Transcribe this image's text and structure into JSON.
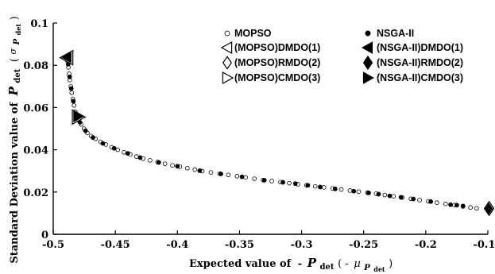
{
  "chart_data": {
    "type": "scatter",
    "xlim": [
      -0.5,
      -0.15
    ],
    "ylim": [
      0,
      0.1
    ],
    "xticks": [
      "-0.5",
      "-0.45",
      "-0.4",
      "-0.35",
      "-0.3",
      "-0.25",
      "-0.2",
      "-0.15"
    ],
    "yticks": [
      "0",
      "0.02",
      "0.04",
      "0.06",
      "0.08",
      "0.1"
    ],
    "xlabel": {
      "main": "Expected value of",
      "sign": "-",
      "var": "P",
      "sub": "det",
      "paren_open": "( -",
      "mu": "μ",
      "mu_sub": "P",
      "mu_sub2": "det",
      "paren_close": ")"
    },
    "ylabel": {
      "main": "Standard Deviation  value of",
      "var": "P",
      "sub": "det",
      "paren_open": "(",
      "sigma": "σ",
      "sigma_sub": "P",
      "sigma_sub2": "det",
      "paren_close": ")"
    },
    "grid": false,
    "legend_position": "top-right",
    "series": [
      {
        "name": "MOPSO",
        "marker": "open-circle",
        "points": [
          [
            -0.4885,
            0.082
          ],
          [
            -0.4878,
            0.079
          ],
          [
            -0.4872,
            0.076
          ],
          [
            -0.4866,
            0.073
          ],
          [
            -0.4858,
            0.07
          ],
          [
            -0.4851,
            0.067
          ],
          [
            -0.4842,
            0.064
          ],
          [
            -0.4832,
            0.061
          ],
          [
            -0.4822,
            0.058
          ],
          [
            -0.481,
            0.056
          ],
          [
            -0.4795,
            0.054
          ],
          [
            -0.4775,
            0.052
          ],
          [
            -0.4752,
            0.05
          ],
          [
            -0.4725,
            0.048
          ],
          [
            -0.4695,
            0.0465
          ],
          [
            -0.466,
            0.0452
          ],
          [
            -0.462,
            0.0438
          ],
          [
            -0.4575,
            0.0425
          ],
          [
            -0.453,
            0.0412
          ],
          [
            -0.448,
            0.04
          ],
          [
            -0.443,
            0.0388
          ],
          [
            -0.438,
            0.0378
          ],
          [
            -0.433,
            0.0368
          ],
          [
            -0.4275,
            0.0358
          ],
          [
            -0.422,
            0.035
          ],
          [
            -0.416,
            0.0342
          ],
          [
            -0.41,
            0.0334
          ],
          [
            -0.404,
            0.0326
          ],
          [
            -0.398,
            0.032
          ],
          [
            -0.392,
            0.0313
          ],
          [
            -0.386,
            0.0306
          ],
          [
            -0.38,
            0.0299
          ],
          [
            -0.373,
            0.0293
          ],
          [
            -0.366,
            0.0287
          ],
          [
            -0.359,
            0.0281
          ],
          [
            -0.352,
            0.0275
          ],
          [
            -0.345,
            0.0269
          ],
          [
            -0.338,
            0.0263
          ],
          [
            -0.331,
            0.0257
          ],
          [
            -0.324,
            0.0252
          ],
          [
            -0.317,
            0.0247
          ],
          [
            -0.31,
            0.0242
          ],
          [
            -0.303,
            0.0237
          ],
          [
            -0.296,
            0.0232
          ],
          [
            -0.289,
            0.0227
          ],
          [
            -0.282,
            0.0222
          ],
          [
            -0.275,
            0.0217
          ],
          [
            -0.268,
            0.0212
          ],
          [
            -0.261,
            0.0207
          ],
          [
            -0.254,
            0.0202
          ],
          [
            -0.247,
            0.0197
          ],
          [
            -0.24,
            0.0192
          ],
          [
            -0.233,
            0.0186
          ],
          [
            -0.226,
            0.018
          ],
          [
            -0.219,
            0.0174
          ],
          [
            -0.212,
            0.0168
          ],
          [
            -0.205,
            0.0162
          ],
          [
            -0.198,
            0.0156
          ],
          [
            -0.191,
            0.015
          ],
          [
            -0.184,
            0.0144
          ],
          [
            -0.177,
            0.0138
          ],
          [
            -0.17,
            0.0132
          ],
          [
            -0.164,
            0.0127
          ],
          [
            -0.159,
            0.0123
          ]
        ]
      },
      {
        "name": "NSGA-II",
        "marker": "filled-circle",
        "points": [
          [
            -0.488,
            0.0805
          ],
          [
            -0.4868,
            0.0745
          ],
          [
            -0.4855,
            0.069
          ],
          [
            -0.4838,
            0.063
          ],
          [
            -0.4815,
            0.057
          ],
          [
            -0.4785,
            0.053
          ],
          [
            -0.474,
            0.049
          ],
          [
            -0.468,
            0.0458
          ],
          [
            -0.46,
            0.043
          ],
          [
            -0.451,
            0.0407
          ],
          [
            -0.44,
            0.0383
          ],
          [
            -0.43,
            0.0363
          ],
          [
            -0.415,
            0.034
          ],
          [
            -0.4,
            0.0322
          ],
          [
            -0.382,
            0.0301
          ],
          [
            -0.365,
            0.0286
          ],
          [
            -0.348,
            0.0272
          ],
          [
            -0.33,
            0.0256
          ],
          [
            -0.315,
            0.0246
          ],
          [
            -0.305,
            0.024
          ],
          [
            -0.295,
            0.0232
          ],
          [
            -0.285,
            0.0224
          ],
          [
            -0.273,
            0.0215
          ],
          [
            -0.258,
            0.0204
          ],
          [
            -0.246,
            0.0196
          ],
          [
            -0.238,
            0.019
          ],
          [
            -0.229,
            0.0182
          ],
          [
            -0.22,
            0.0175
          ],
          [
            -0.21,
            0.0167
          ],
          [
            -0.196,
            0.0155
          ],
          [
            -0.18,
            0.014
          ],
          [
            -0.175,
            0.0138
          ],
          [
            -0.17,
            0.0134
          ]
        ]
      },
      {
        "name": "(MOPSO)DMDO(1)",
        "marker": "open-left-triangle",
        "points": [
          [
            -0.4888,
            0.0836
          ]
        ]
      },
      {
        "name": "(MOPSO)RMDO(2)",
        "marker": "open-diamond",
        "points": [
          [
            -0.149,
            0.0122
          ]
        ]
      },
      {
        "name": "(MOPSO)CMDO(3)",
        "marker": "open-right-triangle",
        "points": [
          [
            -0.48,
            0.0555
          ]
        ]
      },
      {
        "name": "(NSGA-II)DMDO(1)",
        "marker": "filled-left-triangle",
        "points": [
          [
            -0.489,
            0.0838
          ]
        ]
      },
      {
        "name": "(NSGA-II)RMDO(2)",
        "marker": "filled-diamond",
        "points": [
          [
            -0.1492,
            0.0121
          ]
        ]
      },
      {
        "name": "(NSGA-II)CMDO(3)",
        "marker": "filled-right-triangle",
        "points": [
          [
            -0.4802,
            0.0557
          ]
        ]
      }
    ]
  }
}
